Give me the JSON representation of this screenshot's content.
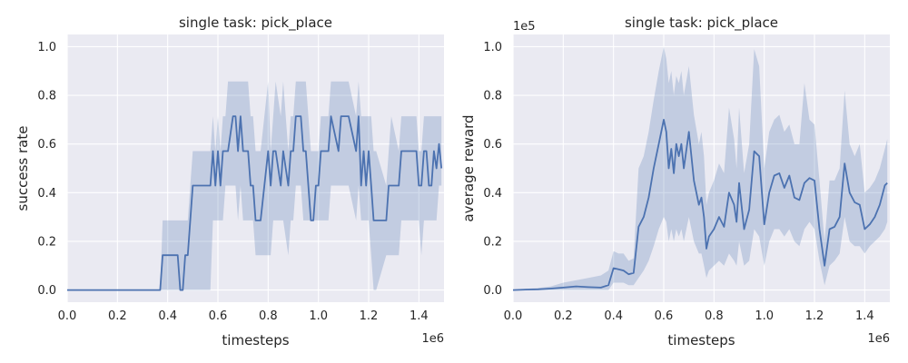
{
  "colors": {
    "line": "#4c72b0",
    "band": "#4c72b0",
    "axes_bg": "#eaeaf2",
    "grid": "#ffffff",
    "text": "#262626"
  },
  "chart_data": [
    {
      "type": "line",
      "title": "single task: pick_place",
      "xlabel": "timesteps",
      "ylabel": "success rate",
      "x_offset_label": "1e6",
      "y_offset_label": "",
      "xlim": [
        0,
        1.5
      ],
      "ylim": [
        -0.05,
        1.05
      ],
      "x_scale": 1000000,
      "y_scale": 1,
      "xticks": [
        0,
        0.2,
        0.4,
        0.6,
        0.8,
        1.0,
        1.2,
        1.4
      ],
      "xtick_labels": [
        "0.0",
        "0.2",
        "0.4",
        "0.6",
        "0.8",
        "1.0",
        "1.2",
        "1.4"
      ],
      "yticks": [
        0,
        0.2,
        0.4,
        0.6,
        0.8,
        1.0
      ],
      "ytick_labels": [
        "0.0",
        "0.2",
        "0.4",
        "0.6",
        "0.8",
        "1.0"
      ],
      "grid": true,
      "series": [
        {
          "x": [
            0,
            0.3,
            0.37,
            0.38,
            0.44,
            0.45,
            0.46,
            0.47,
            0.48,
            0.5,
            0.51,
            0.52,
            0.57,
            0.58,
            0.59,
            0.6,
            0.61,
            0.62,
            0.63,
            0.64,
            0.66,
            0.67,
            0.68,
            0.69,
            0.7,
            0.71,
            0.72,
            0.73,
            0.74,
            0.75,
            0.76,
            0.77,
            0.8,
            0.81,
            0.82,
            0.83,
            0.85,
            0.86,
            0.88,
            0.89,
            0.9,
            0.91,
            0.93,
            0.94,
            0.95,
            0.97,
            0.98,
            0.99,
            1.0,
            1.01,
            1.04,
            1.05,
            1.08,
            1.09,
            1.1,
            1.11,
            1.12,
            1.15,
            1.16,
            1.17,
            1.18,
            1.19,
            1.2,
            1.21,
            1.22,
            1.23,
            1.27,
            1.28,
            1.29,
            1.32,
            1.33,
            1.36,
            1.37,
            1.38,
            1.39,
            1.4,
            1.41,
            1.42,
            1.43,
            1.44,
            1.45,
            1.46,
            1.47,
            1.48,
            1.49
          ],
          "y": [
            0,
            0,
            0,
            0.143,
            0.143,
            0,
            0,
            0.143,
            0.143,
            0.429,
            0.429,
            0.429,
            0.429,
            0.571,
            0.429,
            0.571,
            0.429,
            0.571,
            0.571,
            0.571,
            0.714,
            0.714,
            0.571,
            0.714,
            0.571,
            0.571,
            0.571,
            0.429,
            0.429,
            0.286,
            0.286,
            0.286,
            0.571,
            0.429,
            0.571,
            0.571,
            0.429,
            0.571,
            0.429,
            0.571,
            0.571,
            0.714,
            0.714,
            0.571,
            0.571,
            0.286,
            0.286,
            0.429,
            0.429,
            0.571,
            0.571,
            0.714,
            0.571,
            0.714,
            0.714,
            0.714,
            0.714,
            0.571,
            0.714,
            0.429,
            0.571,
            0.429,
            0.571,
            0.429,
            0.286,
            0.286,
            0.286,
            0.429,
            0.429,
            0.429,
            0.571,
            0.571,
            0.571,
            0.571,
            0.571,
            0.429,
            0.429,
            0.571,
            0.571,
            0.429,
            0.429,
            0.571,
            0.5,
            0.6,
            0.5
          ],
          "lower": [
            0,
            0,
            0,
            0,
            0,
            0,
            0,
            0,
            0,
            0,
            0,
            0,
            0,
            0.286,
            0.286,
            0.286,
            0.286,
            0.286,
            0.429,
            0.429,
            0.429,
            0.429,
            0.286,
            0.429,
            0.286,
            0.286,
            0.286,
            0.286,
            0.286,
            0.143,
            0.143,
            0.143,
            0.143,
            0.143,
            0.286,
            0.286,
            0.286,
            0.286,
            0.143,
            0.286,
            0.286,
            0.429,
            0.429,
            0.286,
            0.286,
            0.286,
            0.286,
            0.286,
            0.286,
            0.286,
            0.286,
            0.429,
            0.429,
            0.429,
            0.429,
            0.429,
            0.429,
            0.286,
            0.429,
            0.286,
            0.286,
            0.286,
            0.286,
            0.143,
            0.0,
            0.0,
            0.143,
            0.143,
            0.143,
            0.143,
            0.286,
            0.286,
            0.286,
            0.286,
            0.286,
            0.286,
            0.143,
            0.286,
            0.286,
            0.286,
            0.286,
            0.286,
            0.286,
            0.429,
            0.429
          ],
          "upper": [
            0,
            0,
            0,
            0.286,
            0.286,
            0.286,
            0.286,
            0.286,
            0.286,
            0.571,
            0.571,
            0.571,
            0.571,
            0.714,
            0.571,
            0.714,
            0.571,
            0.714,
            0.714,
            0.857,
            0.857,
            0.857,
            0.857,
            0.857,
            0.857,
            0.857,
            0.857,
            0.714,
            0.714,
            0.571,
            0.571,
            0.571,
            0.857,
            0.571,
            0.714,
            0.857,
            0.714,
            0.857,
            0.571,
            0.714,
            0.714,
            0.857,
            0.857,
            0.857,
            0.857,
            0.571,
            0.571,
            0.571,
            0.571,
            0.714,
            0.714,
            0.857,
            0.857,
            0.857,
            0.857,
            0.857,
            0.857,
            0.714,
            0.857,
            0.714,
            0.714,
            0.714,
            0.714,
            0.714,
            0.571,
            0.571,
            0.429,
            0.571,
            0.714,
            0.571,
            0.714,
            0.714,
            0.714,
            0.714,
            0.714,
            0.571,
            0.571,
            0.714,
            0.714,
            0.714,
            0.714,
            0.714,
            0.714,
            0.714,
            0.714
          ]
        }
      ]
    },
    {
      "type": "line",
      "title": "single task: pick_place",
      "xlabel": "timesteps",
      "ylabel": "average reward",
      "x_offset_label": "1e6",
      "y_offset_label": "1e5",
      "xlim": [
        0,
        1.5
      ],
      "ylim": [
        -0.05,
        1.05
      ],
      "x_scale": 1000000,
      "y_scale": 100000,
      "xticks": [
        0,
        0.2,
        0.4,
        0.6,
        0.8,
        1.0,
        1.2,
        1.4
      ],
      "xtick_labels": [
        "0.0",
        "0.2",
        "0.4",
        "0.6",
        "0.8",
        "1.0",
        "1.2",
        "1.4"
      ],
      "yticks": [
        0,
        0.2,
        0.4,
        0.6,
        0.8,
        1.0
      ],
      "ytick_labels": [
        "0.0",
        "0.2",
        "0.4",
        "0.6",
        "0.8",
        "1.0"
      ],
      "grid": true,
      "series": [
        {
          "x": [
            0,
            0.05,
            0.1,
            0.15,
            0.2,
            0.25,
            0.3,
            0.35,
            0.38,
            0.4,
            0.42,
            0.44,
            0.46,
            0.48,
            0.5,
            0.52,
            0.54,
            0.56,
            0.58,
            0.6,
            0.61,
            0.62,
            0.63,
            0.64,
            0.65,
            0.66,
            0.67,
            0.68,
            0.7,
            0.72,
            0.74,
            0.75,
            0.76,
            0.77,
            0.78,
            0.8,
            0.82,
            0.84,
            0.86,
            0.88,
            0.89,
            0.9,
            0.92,
            0.94,
            0.96,
            0.98,
            1.0,
            1.02,
            1.04,
            1.06,
            1.08,
            1.1,
            1.12,
            1.14,
            1.16,
            1.18,
            1.2,
            1.22,
            1.24,
            1.26,
            1.28,
            1.3,
            1.32,
            1.34,
            1.36,
            1.38,
            1.4,
            1.42,
            1.44,
            1.46,
            1.48,
            1.49
          ],
          "y": [
            0,
            0.002,
            0.003,
            0.006,
            0.01,
            0.015,
            0.012,
            0.01,
            0.02,
            0.09,
            0.085,
            0.08,
            0.065,
            0.07,
            0.26,
            0.3,
            0.38,
            0.5,
            0.6,
            0.7,
            0.65,
            0.5,
            0.58,
            0.48,
            0.6,
            0.55,
            0.6,
            0.5,
            0.65,
            0.45,
            0.35,
            0.38,
            0.3,
            0.17,
            0.22,
            0.25,
            0.3,
            0.26,
            0.4,
            0.35,
            0.28,
            0.44,
            0.25,
            0.33,
            0.57,
            0.55,
            0.27,
            0.4,
            0.47,
            0.48,
            0.42,
            0.47,
            0.38,
            0.37,
            0.44,
            0.46,
            0.45,
            0.25,
            0.1,
            0.25,
            0.26,
            0.3,
            0.52,
            0.4,
            0.36,
            0.35,
            0.25,
            0.27,
            0.3,
            0.35,
            0.43,
            0.44
          ],
          "lower": [
            0,
            0,
            0,
            0,
            0,
            0,
            0,
            0,
            0,
            0.03,
            0.03,
            0.03,
            0.02,
            0.02,
            0.05,
            0.08,
            0.12,
            0.18,
            0.25,
            0.3,
            0.28,
            0.2,
            0.25,
            0.2,
            0.25,
            0.22,
            0.25,
            0.2,
            0.3,
            0.2,
            0.15,
            0.15,
            0.1,
            0.05,
            0.08,
            0.1,
            0.12,
            0.1,
            0.15,
            0.12,
            0.1,
            0.2,
            0.1,
            0.12,
            0.25,
            0.22,
            0.1,
            0.2,
            0.25,
            0.25,
            0.22,
            0.25,
            0.2,
            0.18,
            0.25,
            0.28,
            0.25,
            0.12,
            0.02,
            0.1,
            0.12,
            0.15,
            0.3,
            0.2,
            0.18,
            0.18,
            0.15,
            0.18,
            0.2,
            0.22,
            0.25,
            0.28
          ],
          "upper": [
            0,
            0.005,
            0.008,
            0.015,
            0.03,
            0.04,
            0.05,
            0.06,
            0.08,
            0.16,
            0.15,
            0.15,
            0.12,
            0.13,
            0.5,
            0.55,
            0.65,
            0.78,
            0.9,
            1.0,
            0.95,
            0.85,
            0.9,
            0.8,
            0.88,
            0.85,
            0.9,
            0.8,
            0.92,
            0.72,
            0.6,
            0.65,
            0.55,
            0.35,
            0.4,
            0.45,
            0.52,
            0.48,
            0.75,
            0.62,
            0.5,
            0.75,
            0.48,
            0.6,
            0.99,
            0.92,
            0.5,
            0.65,
            0.7,
            0.72,
            0.65,
            0.68,
            0.6,
            0.6,
            0.85,
            0.7,
            0.68,
            0.45,
            0.2,
            0.45,
            0.45,
            0.5,
            0.82,
            0.6,
            0.55,
            0.6,
            0.4,
            0.42,
            0.45,
            0.5,
            0.58,
            0.62
          ]
        }
      ]
    }
  ]
}
